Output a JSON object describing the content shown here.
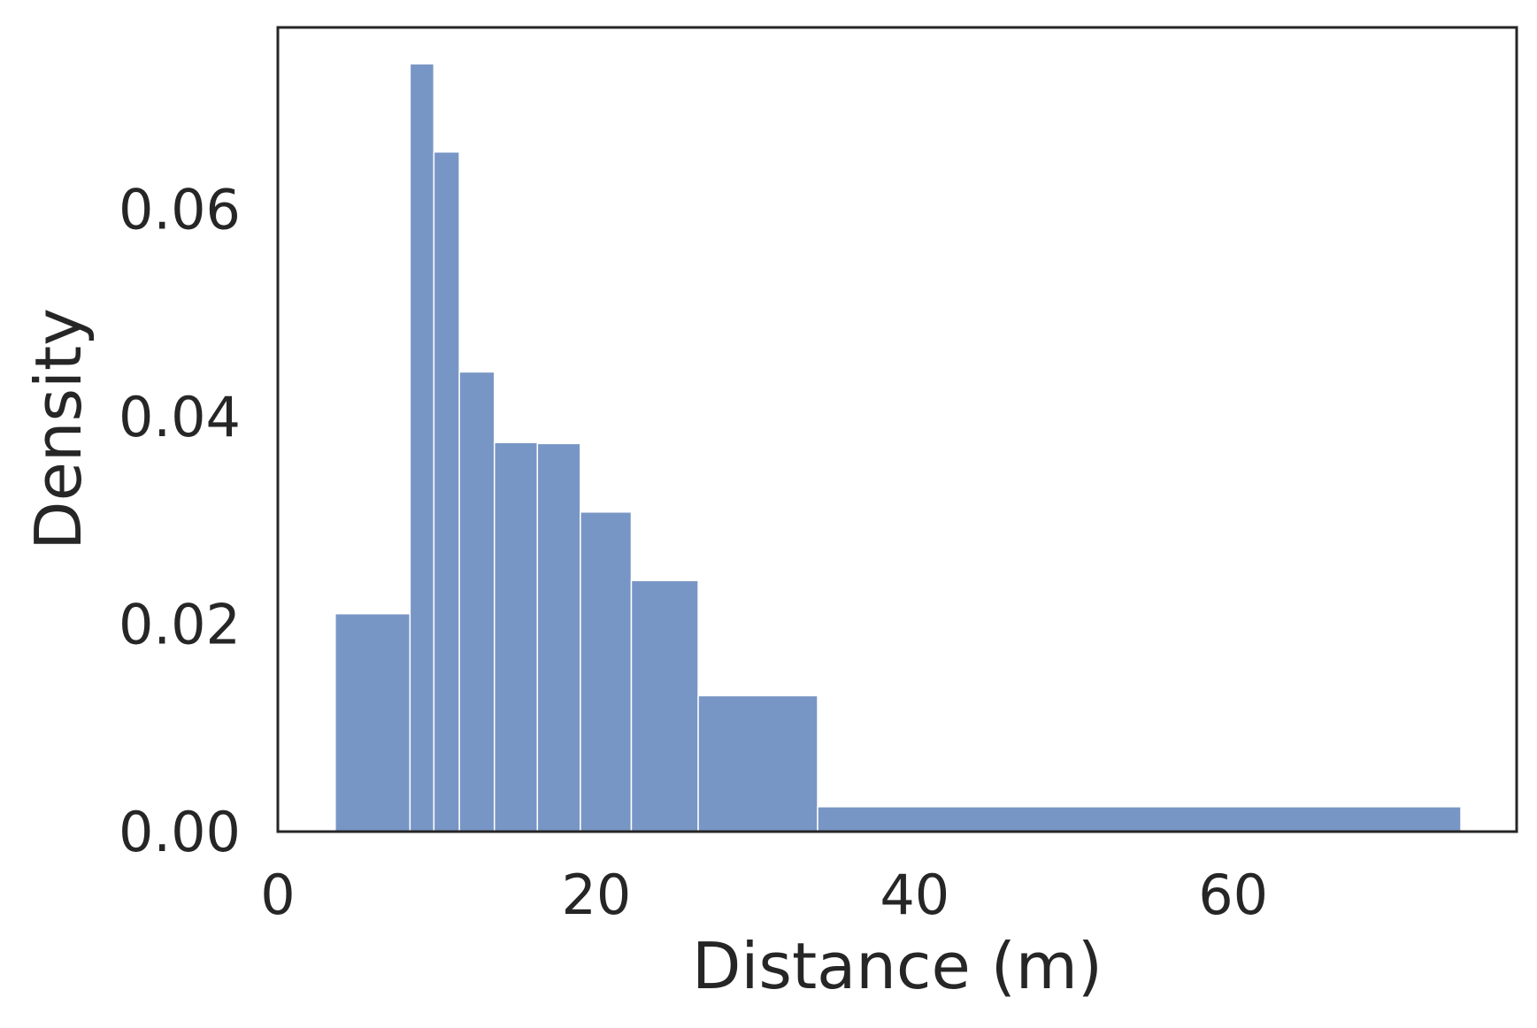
{
  "chart_data": {
    "type": "bar",
    "subtype": "histogram",
    "title": "",
    "xlabel": "Distance (m)",
    "ylabel": "Density",
    "xlim": [
      0,
      77.8
    ],
    "ylim": [
      0,
      0.0775
    ],
    "xticks": [
      {
        "value": 0,
        "label": "0"
      },
      {
        "value": 20,
        "label": "20"
      },
      {
        "value": 40,
        "label": "40"
      },
      {
        "value": 60,
        "label": "60"
      }
    ],
    "yticks": [
      {
        "value": 0.0,
        "label": "0.00"
      },
      {
        "value": 0.02,
        "label": "0.02"
      },
      {
        "value": 0.04,
        "label": "0.04"
      },
      {
        "value": 0.06,
        "label": "0.06"
      }
    ],
    "bins": [
      {
        "x0": 3.6,
        "x1": 8.3,
        "value": 0.021
      },
      {
        "x0": 8.3,
        "x1": 9.8,
        "value": 0.074
      },
      {
        "x0": 9.8,
        "x1": 11.4,
        "value": 0.0655
      },
      {
        "x0": 11.4,
        "x1": 13.6,
        "value": 0.0443
      },
      {
        "x0": 13.6,
        "x1": 16.3,
        "value": 0.0375
      },
      {
        "x0": 16.3,
        "x1": 19.0,
        "value": 0.0374
      },
      {
        "x0": 19.0,
        "x1": 22.2,
        "value": 0.0308
      },
      {
        "x0": 22.2,
        "x1": 26.4,
        "value": 0.0242
      },
      {
        "x0": 26.4,
        "x1": 33.9,
        "value": 0.0131
      },
      {
        "x0": 33.9,
        "x1": 74.3,
        "value": 0.0024
      }
    ],
    "bar_color": "#7896c5",
    "bar_edge_color": "#ffffff",
    "frame_color": "#262626",
    "grid": false,
    "legend": "none"
  }
}
